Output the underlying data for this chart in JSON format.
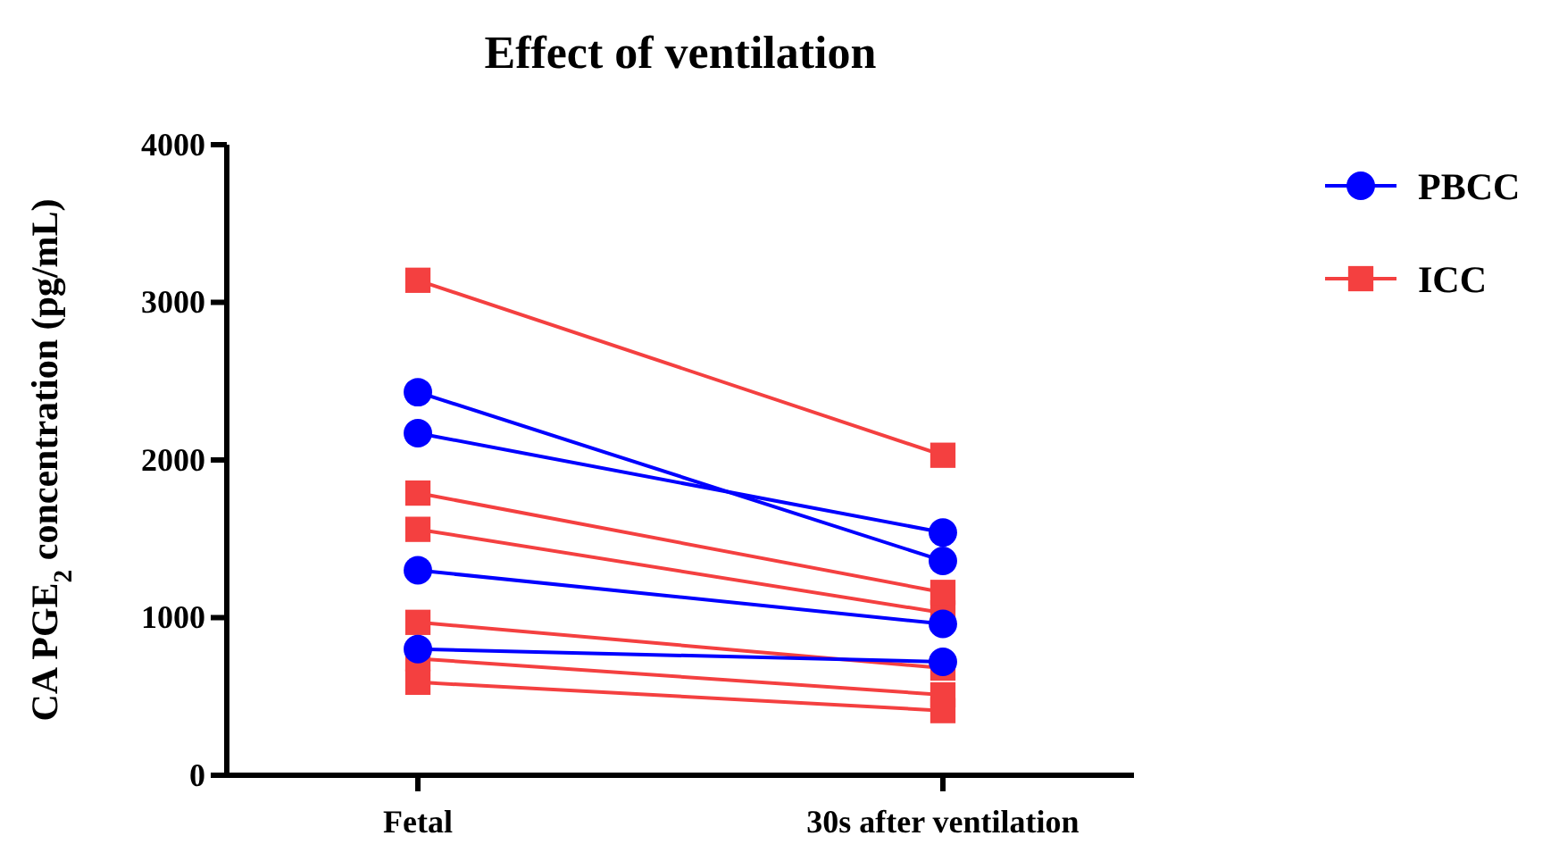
{
  "chart_data": {
    "type": "line",
    "title": "Effect of ventilation",
    "ylabel": "CA PGE$_{2}$ concentration (pg/mL)",
    "categories": [
      "Fetal",
      "30s after ventilation"
    ],
    "ylim": [
      0,
      4000
    ],
    "yticks": [
      0,
      1000,
      2000,
      3000,
      4000
    ],
    "grid": false,
    "legend": "top right",
    "series": [
      {
        "name": "PBCC",
        "color": "#0000ff",
        "marker": "circle",
        "values": [
          2430,
          1360
        ]
      },
      {
        "color": "#0000ff",
        "marker": "circle",
        "values": [
          2170,
          1540
        ]
      },
      {
        "color": "#0000ff",
        "marker": "circle",
        "values": [
          1300,
          960
        ]
      },
      {
        "color": "#0000ff",
        "marker": "circle",
        "values": [
          800,
          720
        ]
      },
      {
        "name": "ICC",
        "color": "#f44040",
        "marker": "square",
        "values": [
          3140,
          2030
        ]
      },
      {
        "color": "#f44040",
        "marker": "square",
        "values": [
          1790,
          1160
        ]
      },
      {
        "color": "#f44040",
        "marker": "square",
        "values": [
          1560,
          1030
        ]
      },
      {
        "color": "#f44040",
        "marker": "square",
        "values": [
          970,
          680
        ]
      },
      {
        "color": "#f44040",
        "marker": "square",
        "values": [
          740,
          510
        ]
      },
      {
        "color": "#f44040",
        "marker": "square",
        "values": [
          590,
          410
        ]
      }
    ]
  }
}
